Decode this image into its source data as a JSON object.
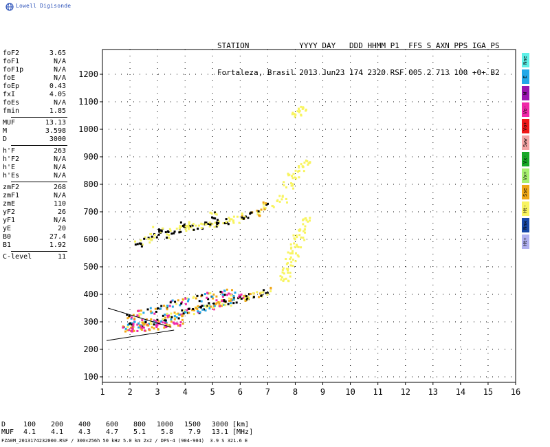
{
  "app": {
    "logo_text": "Lowell Digisonde",
    "logo_icon": "globe-icon",
    "accent": "#2a50b8"
  },
  "header": {
    "line1": "STATION           YYYY DAY   DDD HHMM P1  FFS S AXN PPS IGA PS",
    "line2": "Fortaleza, Brasil 2013 Jun23 174 2320 RSF 005 2 713 100 +0+ B2"
  },
  "params": {
    "group1": [
      {
        "label": "foF2",
        "value": "3.65"
      },
      {
        "label": "foF1",
        "value": "N/A"
      },
      {
        "label": "foF1p",
        "value": "N/A"
      },
      {
        "label": "foE",
        "value": "N/A"
      },
      {
        "label": "foEp",
        "value": "0.43"
      },
      {
        "label": "fxI",
        "value": "4.05"
      },
      {
        "label": "foEs",
        "value": "N/A"
      },
      {
        "label": "fmin",
        "value": "1.85"
      }
    ],
    "group2": [
      {
        "label": "MUF",
        "value": "13.13"
      },
      {
        "label": "M",
        "value": "3.598"
      },
      {
        "label": "D",
        "value": "3000"
      }
    ],
    "group3": [
      {
        "label": "h'F",
        "value": "263"
      },
      {
        "label": "h'F2",
        "value": "N/A"
      },
      {
        "label": "h'E",
        "value": "N/A"
      },
      {
        "label": "h'Es",
        "value": "N/A"
      }
    ],
    "group4": [
      {
        "label": "zmF2",
        "value": "268"
      },
      {
        "label": "zmF1",
        "value": "N/A"
      },
      {
        "label": "zmE",
        "value": "110"
      },
      {
        "label": "yF2",
        "value": "26"
      },
      {
        "label": "yF1",
        "value": "N/A"
      },
      {
        "label": "yE",
        "value": "20"
      },
      {
        "label": "B0",
        "value": "27.4"
      },
      {
        "label": "B1",
        "value": "1.92"
      }
    ],
    "group5": [
      {
        "label": "C-level",
        "value": "11"
      }
    ]
  },
  "legend": [
    {
      "label": "Nne",
      "color": "#5ff0e8"
    },
    {
      "label": "E",
      "color": "#22a8e8"
    },
    {
      "label": "W",
      "color": "#9a16b0"
    },
    {
      "label": "Vo-",
      "color": "#f028a8"
    },
    {
      "label": "Vo+",
      "color": "#f01818"
    },
    {
      "label": "Sww",
      "color": "#f4a4a4"
    },
    {
      "label": "Vx-",
      "color": "#18a828"
    },
    {
      "label": "Vx+",
      "color": "#a8f070"
    },
    {
      "label": "Sse",
      "color": "#f0a818"
    },
    {
      "label": "Ht-",
      "color": "#f8f460"
    },
    {
      "label": "Nnw",
      "color": "#1848a8"
    },
    {
      "label": "Ht+",
      "color": "#b0b0f0"
    }
  ],
  "muf_table": {
    "d_label": "D",
    "d_values": [
      "100",
      "200",
      "400",
      "600",
      "800",
      "1000",
      "1500",
      "3000"
    ],
    "d_unit": "[km]",
    "muf_label": "MUF",
    "muf_values": [
      "4.1",
      "4.1",
      "4.3",
      "4.7",
      "5.1",
      "5.8",
      "7.9",
      "13.1"
    ],
    "muf_unit": "[MHz]"
  },
  "footer": "FZA0M_2013174232000.RSF / 300×256h 50 kHz 5.0 km 2x2 / DPS-4 (904-904)  3.9 S 321.6 E",
  "chart_data": {
    "type": "scatter",
    "title": "",
    "xlabel": "",
    "ylabel": "",
    "xlim": [
      1,
      16
    ],
    "ylim": [
      80,
      1290
    ],
    "x_ticks": [
      1,
      2,
      3,
      4,
      5,
      6,
      7,
      8,
      9,
      10,
      11,
      12,
      13,
      14,
      15,
      16
    ],
    "y_ticks": [
      100,
      200,
      300,
      400,
      500,
      600,
      700,
      800,
      900,
      1000,
      1100,
      1200
    ],
    "grid": "dotted",
    "legend_position": "right",
    "echo_regions": [
      {
        "name": "F-trace",
        "colors": [
          "#f0a818",
          "#f8f460",
          "#22a8e8",
          "#000000",
          "#f028a8"
        ],
        "points": [
          [
            1.9,
            285
          ],
          [
            2.1,
            290
          ],
          [
            2.3,
            292
          ],
          [
            2.5,
            298
          ],
          [
            2.7,
            300
          ],
          [
            2.9,
            305
          ],
          [
            3.1,
            310
          ],
          [
            3.3,
            318
          ],
          [
            3.5,
            322
          ],
          [
            3.7,
            328
          ],
          [
            3.9,
            335
          ],
          [
            4.1,
            340
          ],
          [
            4.3,
            345
          ],
          [
            4.5,
            350
          ],
          [
            4.7,
            355
          ],
          [
            4.9,
            360
          ],
          [
            5.1,
            365
          ],
          [
            5.3,
            370
          ],
          [
            5.5,
            375
          ],
          [
            5.7,
            380
          ],
          [
            5.9,
            388
          ],
          [
            6.1,
            392
          ],
          [
            2.0,
            320
          ],
          [
            2.4,
            335
          ],
          [
            2.8,
            345
          ],
          [
            3.2,
            360
          ],
          [
            3.6,
            370
          ],
          [
            4.0,
            380
          ],
          [
            4.4,
            390
          ],
          [
            4.8,
            398
          ],
          [
            5.2,
            405
          ],
          [
            5.6,
            412
          ]
        ]
      },
      {
        "name": "F-trace-o-lower",
        "colors": [
          "#f028a8",
          "#f0a818"
        ],
        "points": [
          [
            1.9,
            275
          ],
          [
            2.2,
            278
          ],
          [
            2.5,
            282
          ],
          [
            2.8,
            285
          ],
          [
            3.1,
            288
          ],
          [
            3.4,
            292
          ],
          [
            3.7,
            300
          ]
        ]
      },
      {
        "name": "second-hop",
        "colors": [
          "#f8f460",
          "#000000"
        ],
        "points": [
          [
            2.3,
            590
          ],
          [
            2.6,
            600
          ],
          [
            2.9,
            615
          ],
          [
            3.2,
            620
          ],
          [
            3.5,
            630
          ],
          [
            3.8,
            640
          ],
          [
            4.1,
            645
          ],
          [
            4.4,
            650
          ],
          [
            4.7,
            655
          ],
          [
            5.0,
            660
          ],
          [
            5.3,
            665
          ],
          [
            5.6,
            670
          ],
          [
            5.9,
            675
          ],
          [
            3.0,
            640
          ],
          [
            4.0,
            660
          ],
          [
            5.0,
            690
          ]
        ]
      },
      {
        "name": "mid-spread",
        "colors": [
          "#f8f460",
          "#f0a818",
          "#000000"
        ],
        "points": [
          [
            6.3,
            395
          ],
          [
            6.6,
            405
          ],
          [
            6.9,
            415
          ],
          [
            6.2,
            690
          ],
          [
            6.5,
            700
          ],
          [
            6.8,
            710
          ],
          [
            7.0,
            730
          ]
        ]
      },
      {
        "name": "spread-F-vertical",
        "colors": [
          "#f8f460"
        ],
        "points": [
          [
            7.6,
            460
          ],
          [
            7.7,
            490
          ],
          [
            7.8,
            520
          ],
          [
            7.9,
            550
          ],
          [
            8.0,
            580
          ],
          [
            8.1,
            610
          ],
          [
            8.2,
            640
          ],
          [
            8.3,
            670
          ],
          [
            7.5,
            750
          ],
          [
            7.7,
            800
          ],
          [
            7.9,
            830
          ],
          [
            8.1,
            860
          ],
          [
            8.3,
            880
          ],
          [
            8.0,
            1060
          ],
          [
            8.2,
            1080
          ]
        ]
      }
    ],
    "profile_lines": [
      {
        "name": "profile-lower",
        "points": [
          [
            1.15,
            232
          ],
          [
            3.6,
            270
          ]
        ]
      },
      {
        "name": "profile-upper",
        "points": [
          [
            1.2,
            350
          ],
          [
            3.5,
            280
          ]
        ]
      }
    ]
  }
}
